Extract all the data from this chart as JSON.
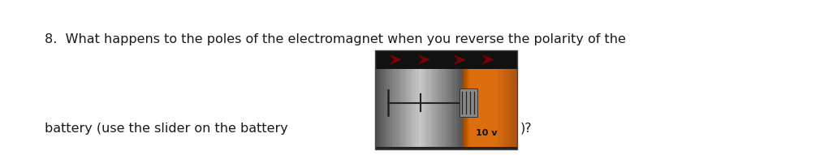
{
  "background_color": "#ffffff",
  "text_line1": "8.  What happens to the poles of the electromagnet when you reverse the polarity of the",
  "text_line2": "battery (use the slider on the battery",
  "text_suffix": ")?",
  "text_fontsize": 11.5,
  "text_color": "#1a1a1a",
  "battery_label": "10 v",
  "label_fontsize": 8,
  "label_color": "#111111"
}
